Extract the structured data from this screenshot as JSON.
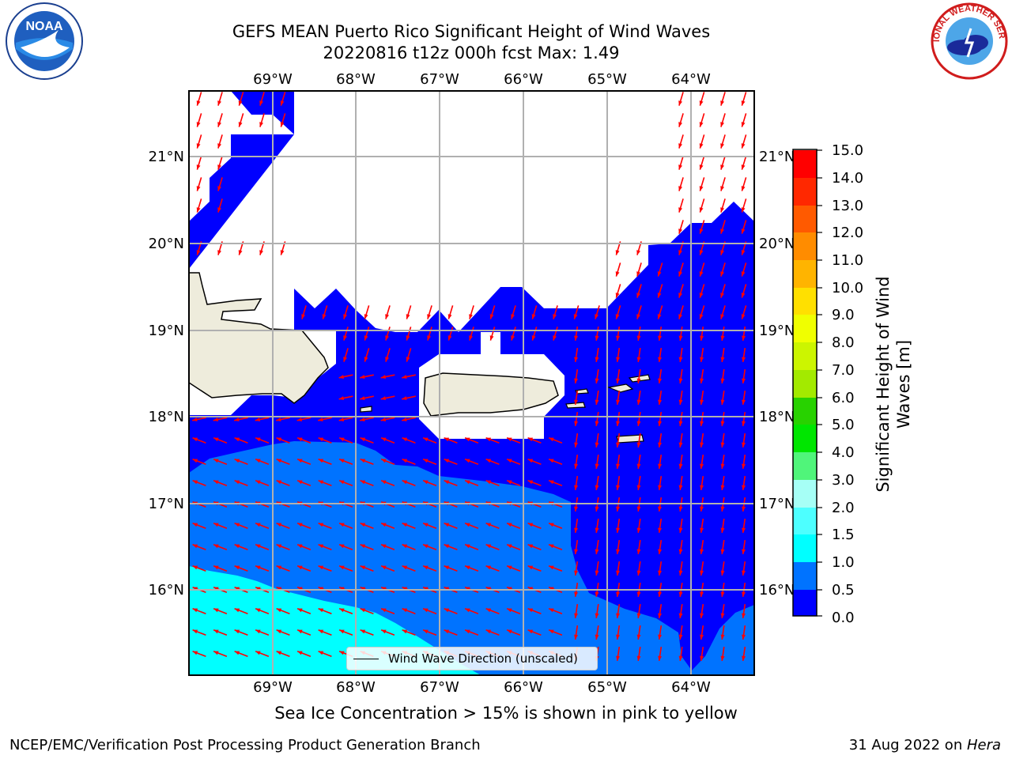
{
  "title_line1": "GEFS MEAN Puerto Rico Significant Height of Wind Waves",
  "title_line2": "20220816 t12z 000h fcst   Max: 1.49",
  "lon_labels": [
    "69°W",
    "68°W",
    "67°W",
    "66°W",
    "65°W",
    "64°W"
  ],
  "lat_labels": [
    "21°N",
    "20°N",
    "19°N",
    "18°N",
    "17°N",
    "16°N"
  ],
  "colorbar": {
    "title": "Significant Height of Wind Waves [m]",
    "ticks": [
      "15.0",
      "14.0",
      "13.0",
      "12.0",
      "11.0",
      "10.0",
      "9.0",
      "8.0",
      "7.0",
      "6.0",
      "5.0",
      "4.0",
      "3.0",
      "2.0",
      "1.5",
      "1.0",
      "0.5",
      "0.0"
    ],
    "colors_bottom_to_top": [
      "#0000ff",
      "#0073ff",
      "#00b4ff",
      "#00ffff",
      "#4dffff",
      "#80ffff",
      "#a6fff6",
      "#50f57a",
      "#00e600",
      "#28d200",
      "#6ede00",
      "#a3ea00",
      "#ccf500",
      "#f0ff00",
      "#ffe000",
      "#ffb400",
      "#ff8c00",
      "#ff5a00",
      "#ff2800",
      "#ff0000"
    ]
  },
  "legend": {
    "label": "Wind Wave Direction (unscaled)"
  },
  "note": "Sea Ice Concentration > 15% is shown in pink to yellow",
  "footer_left": "NCEP/EMC/Verification Post Processing Product Generation Branch",
  "footer_right_prefix": "31 Aug 2022 on ",
  "footer_right_machine": "Hera",
  "logos": {
    "left": "noaa-logo",
    "right": "national-weather-service-logo"
  },
  "field_colors": {
    "wave_0_0.5": "#0000ff",
    "wave_0.5_1.0": "#0073ff",
    "wave_1.0_1.5": "#00ffff",
    "land": "#eeecdc",
    "arrow": "#ff0000"
  }
}
